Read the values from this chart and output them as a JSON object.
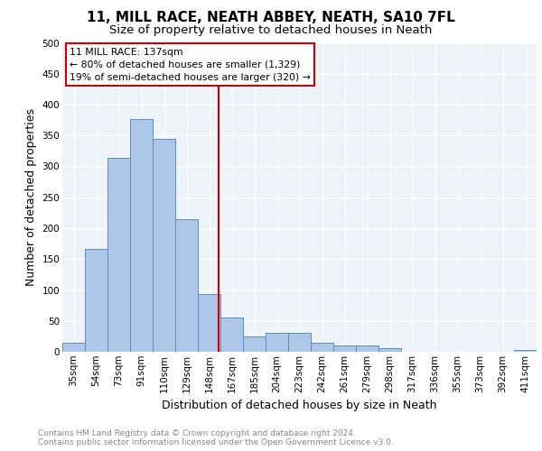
{
  "title": "11, MILL RACE, NEATH ABBEY, NEATH, SA10 7FL",
  "subtitle": "Size of property relative to detached houses in Neath",
  "xlabel": "Distribution of detached houses by size in Neath",
  "ylabel": "Number of detached properties",
  "categories": [
    "35sqm",
    "54sqm",
    "73sqm",
    "91sqm",
    "110sqm",
    "129sqm",
    "148sqm",
    "167sqm",
    "185sqm",
    "204sqm",
    "223sqm",
    "242sqm",
    "261sqm",
    "279sqm",
    "298sqm",
    "317sqm",
    "336sqm",
    "355sqm",
    "373sqm",
    "392sqm",
    "411sqm"
  ],
  "values": [
    15,
    167,
    314,
    376,
    345,
    215,
    93,
    55,
    25,
    30,
    30,
    15,
    10,
    10,
    6,
    0,
    0,
    0,
    0,
    0,
    3
  ],
  "bar_color": "#aec6e8",
  "bar_edge_color": "#5a8fc0",
  "vline_x": 6.4,
  "vline_color": "#cc0000",
  "ylim": [
    0,
    500
  ],
  "yticks": [
    0,
    50,
    100,
    150,
    200,
    250,
    300,
    350,
    400,
    450,
    500
  ],
  "annotation_title": "11 MILL RACE: 137sqm",
  "annotation_line1": "← 80% of detached houses are smaller (1,329)",
  "annotation_line2": "19% of semi-detached houses are larger (320) →",
  "annotation_box_color": "#cc0000",
  "footer_line1": "Contains HM Land Registry data © Crown copyright and database right 2024.",
  "footer_line2": "Contains public sector information licensed under the Open Government Licence v3.0.",
  "bg_color": "#eef2f9",
  "title_fontsize": 11,
  "subtitle_fontsize": 9.5,
  "axis_fontsize": 9,
  "tick_fontsize": 7.5,
  "ylabel_fontsize": 9
}
